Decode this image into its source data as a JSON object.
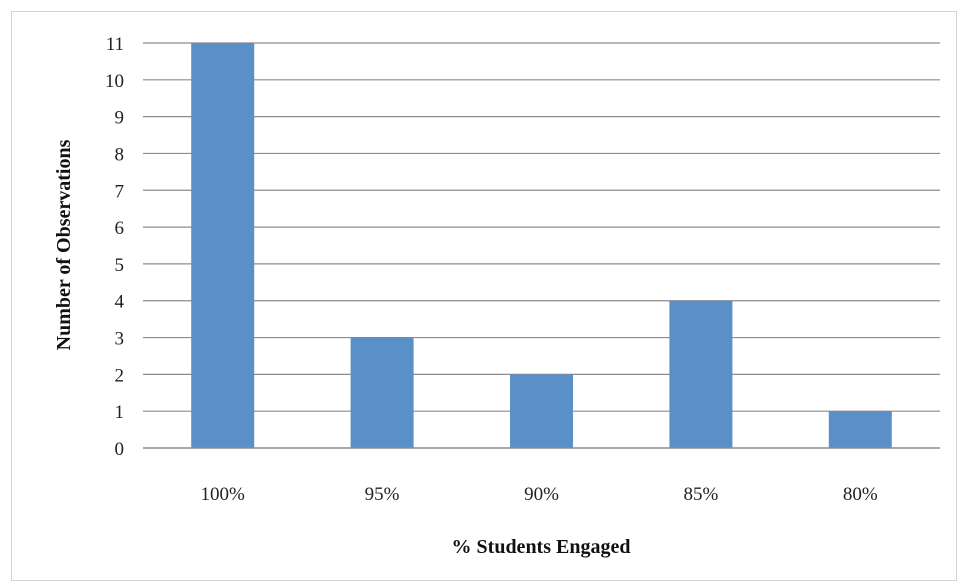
{
  "chart_data": {
    "type": "bar",
    "categories": [
      "100%",
      "95%",
      "90%",
      "85%",
      "80%"
    ],
    "values": [
      11,
      3,
      2,
      4,
      1
    ],
    "title": "",
    "xlabel": "% Students Engaged",
    "ylabel": "Number of Observations",
    "ylim": [
      0,
      11
    ],
    "yticks": [
      "0",
      "1",
      "2",
      "3",
      "4",
      "5",
      "6",
      "7",
      "8",
      "9",
      "10",
      "11"
    ],
    "grid": true,
    "legend": "none",
    "bar_color": "#5b8fc7",
    "grid_color": "#8c8c8c"
  }
}
